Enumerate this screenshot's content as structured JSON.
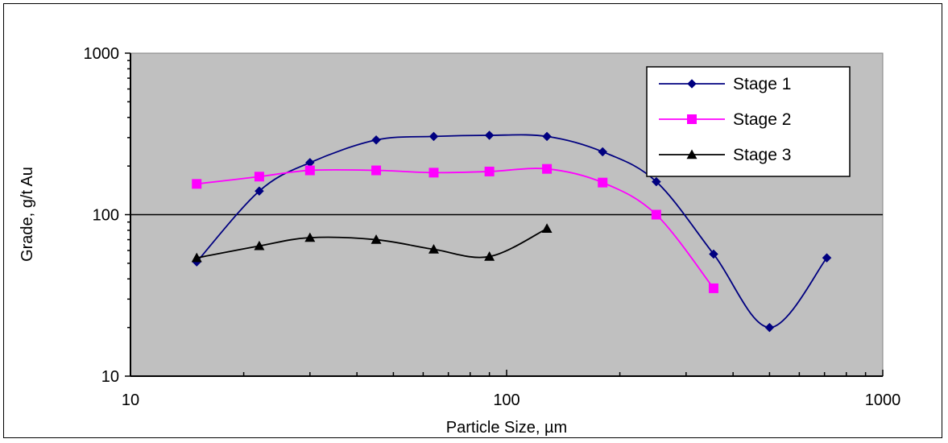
{
  "chart_data": {
    "type": "line",
    "title": "",
    "xlabel": "Particle Size, µm",
    "ylabel": "Grade, g/t Au",
    "x_scale": "log",
    "y_scale": "log",
    "xlim": [
      10,
      1000
    ],
    "ylim": [
      10,
      1000
    ],
    "x_ticks": [
      10,
      100,
      1000
    ],
    "y_ticks": [
      10,
      100,
      1000
    ],
    "x_tick_labels": [
      "10",
      "100",
      "1000"
    ],
    "y_tick_labels": [
      "10",
      "100",
      "1000"
    ],
    "grid": "horizontal major gridlines",
    "plot_background": "#c0c0c0",
    "legend_position": "top-right",
    "smoothed_lines": true,
    "series": [
      {
        "name": "Stage 1",
        "color": "#000080",
        "marker": "diamond",
        "x": [
          15,
          22,
          30,
          45,
          64,
          90,
          128,
          180,
          250,
          355,
          500,
          710
        ],
        "y": [
          51,
          140,
          210,
          290,
          305,
          310,
          305,
          245,
          160,
          57,
          20,
          54
        ]
      },
      {
        "name": "Stage 2",
        "color": "#ff00ff",
        "marker": "square",
        "x": [
          15,
          22,
          30,
          45,
          64,
          90,
          128,
          180,
          250,
          355
        ],
        "y": [
          155,
          172,
          188,
          188,
          182,
          185,
          192,
          158,
          100,
          35
        ]
      },
      {
        "name": "Stage 3",
        "color": "#000000",
        "marker": "triangle",
        "x": [
          15,
          22,
          30,
          45,
          64,
          90,
          128
        ],
        "y": [
          54,
          64,
          72,
          70,
          61,
          55,
          82
        ]
      }
    ]
  }
}
